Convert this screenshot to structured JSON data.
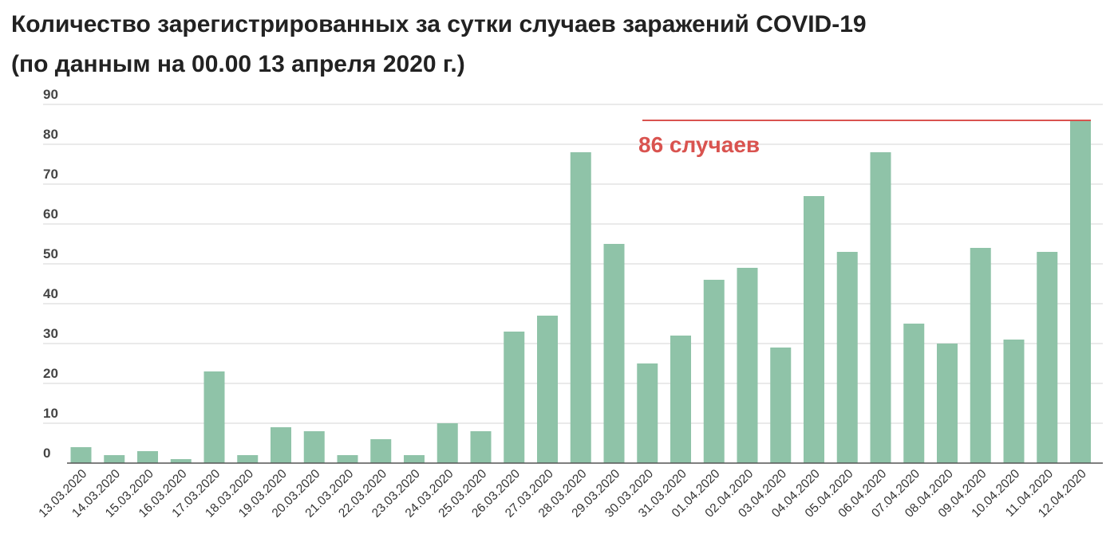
{
  "chart_data": {
    "type": "bar",
    "title": "Количество зарегистрированных за сутки случаев заражений COVID-19",
    "subtitle": "(по данным на 00.00 13 апреля 2020 г.)",
    "xlabel": "",
    "ylabel": "",
    "ylim": [
      0,
      90
    ],
    "yticks": [
      0,
      10,
      20,
      30,
      40,
      50,
      60,
      70,
      80,
      90
    ],
    "grid": true,
    "categories": [
      "13.03.2020",
      "14.03.2020",
      "15.03.2020",
      "16.03.2020",
      "17.03.2020",
      "18.03.2020",
      "19.03.2020",
      "20.03.2020",
      "21.03.2020",
      "22.03.2020",
      "23.03.2020",
      "24.03.2020",
      "25.03.2020",
      "26.03.2020",
      "27.03.2020",
      "28.03.2020",
      "29.03.2020",
      "30.03.2020",
      "31.03.2020",
      "01.04.2020",
      "02.04.2020",
      "03.04.2020",
      "04.04.2020",
      "05.04.2020",
      "06.04.2020",
      "07.04.2020",
      "08.04.2020",
      "09.04.2020",
      "10.04.2020",
      "11.04.2020",
      "12.04.2020"
    ],
    "values": [
      4,
      2,
      3,
      1,
      23,
      2,
      9,
      8,
      2,
      6,
      2,
      10,
      8,
      33,
      37,
      78,
      55,
      25,
      32,
      46,
      49,
      29,
      67,
      53,
      78,
      35,
      30,
      54,
      31,
      53,
      86
    ],
    "annotation": {
      "text": "86 случаев",
      "value": 86
    },
    "colors": {
      "bar": "#8fc3a8",
      "annotation": "#d9534f",
      "grid": "#e3e3e3",
      "axis": "#555555"
    }
  }
}
